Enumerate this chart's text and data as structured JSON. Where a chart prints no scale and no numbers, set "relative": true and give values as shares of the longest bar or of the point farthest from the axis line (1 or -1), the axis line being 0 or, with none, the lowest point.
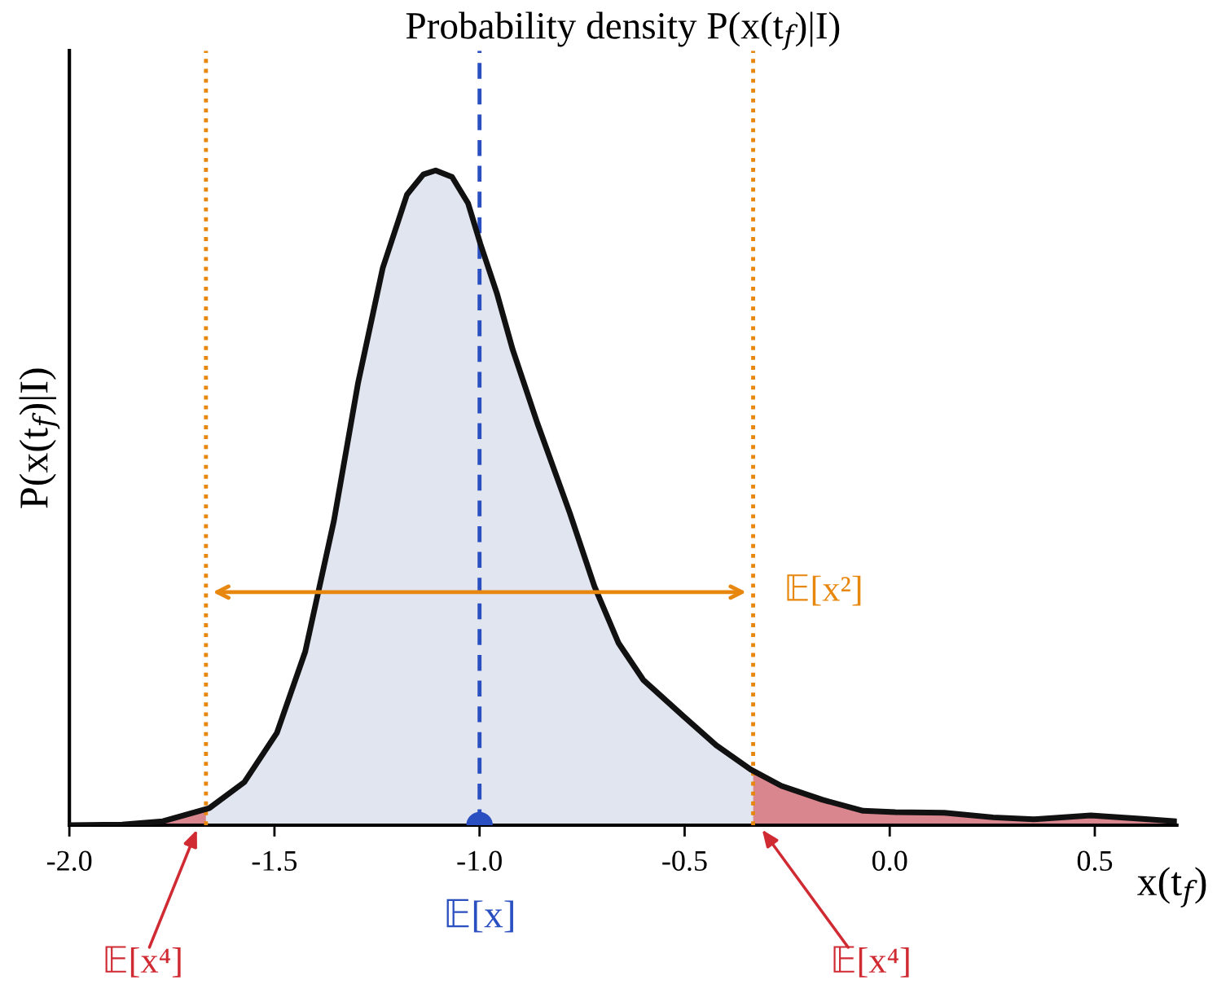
{
  "chart_data": {
    "type": "line",
    "title": "Probability density P(x(t$_{f}$)|I)",
    "xlabel": "x(t$_{f}$)",
    "ylabel": "P(x(t$_{f}$)|I)",
    "relative": true,
    "xlim": [
      -2.0,
      0.7
    ],
    "xticks": [
      {
        "value": -2.0,
        "label": "-2.0"
      },
      {
        "value": -1.5,
        "label": "-1.5"
      },
      {
        "value": -1.0,
        "label": "-1.0"
      },
      {
        "value": -0.5,
        "label": "-0.5"
      },
      {
        "value": 0.0,
        "label": "0.0"
      },
      {
        "value": 0.5,
        "label": "0.5"
      }
    ],
    "tick_labels": "x",
    "grid": false,
    "legend": false,
    "series": [
      {
        "type": "area",
        "color": "#e1e5f0",
        "x": [
          -1.667,
          -1.573,
          -1.494,
          -1.425,
          -1.355,
          -1.296,
          -1.236,
          -1.177,
          -1.137,
          -1.107,
          -1.067,
          -1.028,
          -0.998,
          -0.958,
          -0.919,
          -0.859,
          -0.78,
          -0.72,
          -0.661,
          -0.601,
          -0.502,
          -0.423,
          -0.333
        ],
        "values": [
          0.027,
          0.066,
          0.141,
          0.265,
          0.465,
          0.676,
          0.851,
          0.963,
          0.994,
          1.0,
          0.99,
          0.95,
          0.888,
          0.813,
          0.726,
          0.614,
          0.477,
          0.365,
          0.278,
          0.222,
          0.166,
          0.122,
          0.085
        ]
      },
      {
        "type": "area",
        "color": "#d9868f",
        "x": [
          -2.0,
          -1.871,
          -1.772,
          -1.667
        ],
        "values": [
          0,
          0.001,
          0.006,
          0.027
        ]
      },
      {
        "type": "area",
        "color": "#d9868f",
        "x": [
          -0.333,
          -0.264,
          -0.165,
          -0.065,
          0.014,
          0.133,
          0.252,
          0.351,
          0.49,
          0.609,
          0.698
        ],
        "values": [
          0.085,
          0.06,
          0.039,
          0.022,
          0.02,
          0.019,
          0.012,
          0.009,
          0.015,
          0.01,
          0.006
        ]
      },
      {
        "type": "line",
        "color": "#111111",
        "line_style": "solid",
        "x": [
          -2.0,
          -1.871,
          -1.772,
          -1.659,
          -1.573,
          -1.494,
          -1.425,
          -1.355,
          -1.296,
          -1.236,
          -1.177,
          -1.137,
          -1.107,
          -1.067,
          -1.028,
          -0.998,
          -0.958,
          -0.919,
          -0.859,
          -0.78,
          -0.72,
          -0.661,
          -0.601,
          -0.502,
          -0.423,
          -0.339,
          -0.264,
          -0.165,
          -0.065,
          0.014,
          0.133,
          0.252,
          0.351,
          0.49,
          0.609,
          0.698
        ],
        "values": [
          0,
          0.001,
          0.006,
          0.026,
          0.066,
          0.141,
          0.265,
          0.465,
          0.676,
          0.851,
          0.963,
          0.994,
          1.0,
          0.99,
          0.95,
          0.888,
          0.813,
          0.726,
          0.614,
          0.477,
          0.365,
          0.278,
          0.222,
          0.166,
          0.122,
          0.085,
          0.06,
          0.039,
          0.022,
          0.02,
          0.019,
          0.012,
          0.009,
          0.015,
          0.01,
          0.006
        ]
      },
      {
        "type": "scatter",
        "color": "#2a4fc0",
        "marker": "circle",
        "x": [
          -1.0
        ],
        "values": [
          0
        ]
      }
    ],
    "ref_lines": [
      {
        "axis": "x",
        "value": -1.0,
        "label": "𝔼[x]",
        "color": "#2a4fc0",
        "line_style": "dashed"
      },
      {
        "axis": "x",
        "value": -1.667,
        "label": null,
        "color": "#e8870e",
        "line_style": "dotted"
      },
      {
        "axis": "x",
        "value": -0.333,
        "label": null,
        "color": "#e8870e",
        "line_style": "dotted"
      }
    ],
    "annotations": [
      {
        "text": "𝔼[x²]",
        "x": -0.333,
        "y": 0.356
      },
      "𝔼[x⁴]",
      "𝔼[x⁴]"
    ]
  }
}
